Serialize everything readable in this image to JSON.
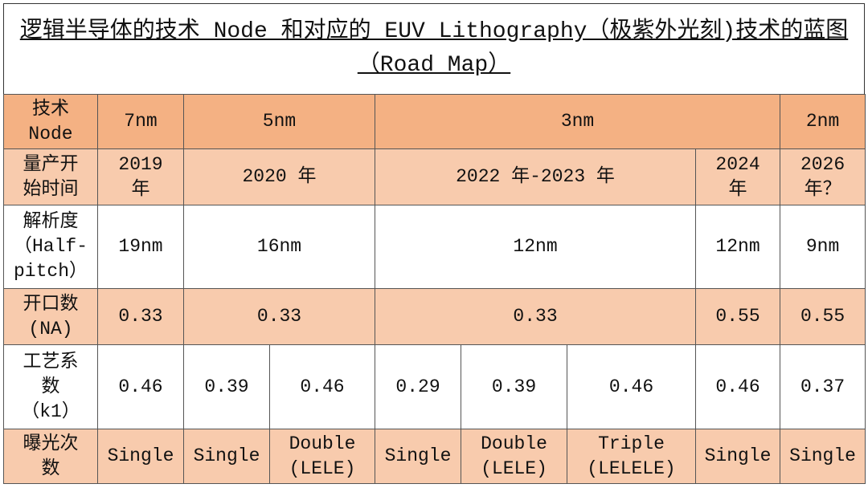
{
  "title": "逻辑半导体的技术 Node 和对应的 EUV Lithography（极紫外光刻)技术的蓝图（Road Map）",
  "table": {
    "rows": [
      [
        "技术\nNode",
        "7nm",
        "5nm",
        "3nm",
        "2nm"
      ],
      [
        "量产开\n始时间",
        "2019\n年",
        "2020 年",
        "2022 年-2023 年",
        "2024\n年",
        "2026\n年？"
      ],
      [
        "解析度\n（Half-\npitch）",
        "19nm",
        "16nm",
        "12nm",
        "12nm",
        "9nm"
      ],
      [
        "开口数\n(NA)",
        "0.33",
        "0.33",
        "0.33",
        "0.55",
        "0.55"
      ],
      [
        "工艺系\n数\n（k1）",
        "0.46",
        "0.39",
        "0.46",
        "0.29",
        "0.39",
        "0.46",
        "0.46",
        "0.37"
      ],
      [
        "曝光次\n数",
        "Single",
        "Single",
        "Double\n(LELE)",
        "Single",
        "Double\n(LELE)",
        "Triple\n(LELELE)",
        "Single",
        "Single"
      ]
    ]
  }
}
